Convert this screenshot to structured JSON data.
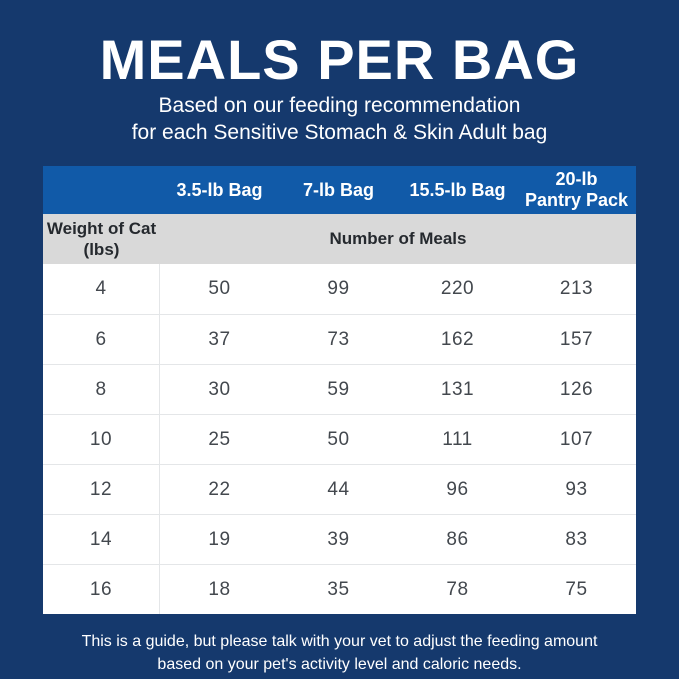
{
  "colors": {
    "background_navy": "#15396D",
    "header_blue": "#115AA8",
    "subheader_gray": "#D9D9D9",
    "table_white": "#FFFFFF",
    "divider_gray": "#E4E6E8",
    "data_text": "#43484E",
    "label_text": "#25292E",
    "title_text": "#FFFFFF"
  },
  "header": {
    "title": "MEALS PER BAG",
    "subtitle_line1": "Based on our feeding recommendation",
    "subtitle_line2": "for each Sensitive Stomach & Skin Adult bag"
  },
  "table": {
    "column_headers": [
      "3.5-lb Bag",
      "7-lb Bag",
      "15.5-lb Bag",
      "20-lb\nPantry Pack"
    ],
    "weight_of_cat_label": "Weight of Cat\n(lbs)",
    "number_of_meals_label": "Number of Meals",
    "rows": [
      {
        "weight": "4",
        "meals": [
          "50",
          "99",
          "220",
          "213"
        ]
      },
      {
        "weight": "6",
        "meals": [
          "37",
          "73",
          "162",
          "157"
        ]
      },
      {
        "weight": "8",
        "meals": [
          "30",
          "59",
          "131",
          "126"
        ]
      },
      {
        "weight": "10",
        "meals": [
          "25",
          "50",
          "111",
          "107"
        ]
      },
      {
        "weight": "12",
        "meals": [
          "22",
          "44",
          "96",
          "93"
        ]
      },
      {
        "weight": "14",
        "meals": [
          "19",
          "39",
          "86",
          "83"
        ]
      },
      {
        "weight": "16",
        "meals": [
          "18",
          "35",
          "78",
          "75"
        ]
      }
    ]
  },
  "footer": {
    "line1": "This is a guide, but please talk with your vet to adjust the feeding amount",
    "line2": "based on your pet's activity level and caloric needs."
  },
  "chart_data": {
    "type": "table",
    "title": "MEALS PER BAG",
    "subtitle": "Based on our feeding recommendation for each Sensitive Stomach & Skin Adult bag",
    "xlabel": "Weight of Cat (lbs)",
    "ylabel": "Number of Meals",
    "categories": [
      4,
      6,
      8,
      10,
      12,
      14,
      16
    ],
    "series": [
      {
        "name": "3.5-lb Bag",
        "values": [
          50,
          37,
          30,
          25,
          22,
          19,
          18
        ]
      },
      {
        "name": "7-lb Bag",
        "values": [
          99,
          73,
          59,
          50,
          44,
          39,
          35
        ]
      },
      {
        "name": "15.5-lb Bag",
        "values": [
          220,
          162,
          131,
          111,
          96,
          86,
          78
        ]
      },
      {
        "name": "20-lb Pantry Pack",
        "values": [
          213,
          157,
          126,
          107,
          93,
          83,
          75
        ]
      }
    ],
    "note": "This is a guide, but please talk with your vet to adjust the feeding amount based on your pet's activity level and caloric needs."
  }
}
